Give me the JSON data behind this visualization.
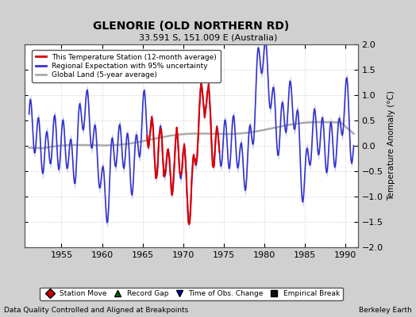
{
  "title": "GLENORIE (OLD NORTHERN RD)",
  "subtitle": "33.591 S, 151.009 E (Australia)",
  "ylabel": "Temperature Anomaly (°C)",
  "xlabel_note": "Data Quality Controlled and Aligned at Breakpoints",
  "credit": "Berkeley Earth",
  "xlim": [
    1950.5,
    1991.5
  ],
  "ylim": [
    -2,
    2
  ],
  "yticks": [
    -2,
    -1.5,
    -1,
    -0.5,
    0,
    0.5,
    1,
    1.5,
    2
  ],
  "xticks": [
    1955,
    1960,
    1965,
    1970,
    1975,
    1980,
    1985,
    1990
  ],
  "fig_bg_color": "#d0d0d0",
  "plot_bg_color": "#ffffff",
  "regional_color": "#3333cc",
  "regional_fill_color": "#aaaaee",
  "station_color": "#dd0000",
  "global_color": "#aaaaaa",
  "legend_items": [
    {
      "label": "This Temperature Station (12-month average)",
      "color": "#dd0000",
      "lw": 2
    },
    {
      "label": "Regional Expectation with 95% uncertainty",
      "color": "#3333cc",
      "lw": 2
    },
    {
      "label": "Global Land (5-year average)",
      "color": "#aaaaaa",
      "lw": 2
    }
  ],
  "marker_items": [
    {
      "label": "Station Move",
      "color": "#cc0000",
      "marker": "D"
    },
    {
      "label": "Record Gap",
      "color": "#006600",
      "marker": "^"
    },
    {
      "label": "Time of Obs. Change",
      "color": "#0000cc",
      "marker": "v"
    },
    {
      "label": "Empirical Break",
      "color": "#111111",
      "marker": "s"
    }
  ]
}
